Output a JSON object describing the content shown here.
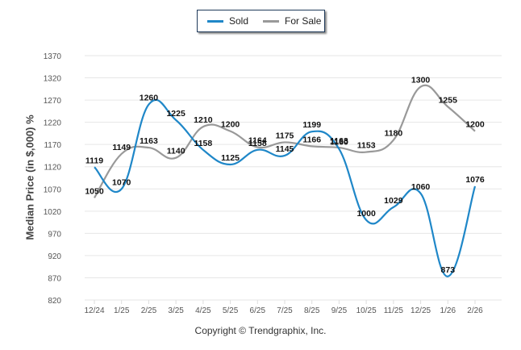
{
  "chart_data": {
    "type": "line",
    "title": "",
    "xlabel": "",
    "ylabel": "Median Price (in $,000) %",
    "categories": [
      "12/24",
      "1/25",
      "2/25",
      "3/25",
      "4/25",
      "5/25",
      "6/25",
      "7/25",
      "8/25",
      "9/25",
      "10/25",
      "11/25",
      "12/25",
      "1/26",
      "2/26"
    ],
    "yticks": [
      820,
      870,
      920,
      970,
      1020,
      1070,
      1120,
      1170,
      1220,
      1270,
      1320,
      1370
    ],
    "ylim": [
      820,
      1370
    ],
    "grid": true,
    "legend_position": "top-center",
    "series": [
      {
        "name": "Sold",
        "color": "#1f87c8",
        "values": [
          1119,
          1070,
          1260,
          1225,
          1158,
          1125,
          1158,
          1145,
          1199,
          1160,
          1000,
          1029,
          1060,
          873,
          1076
        ]
      },
      {
        "name": "For Sale",
        "color": "#999999",
        "values": [
          1050,
          1149,
          1163,
          1140,
          1210,
          1200,
          1164,
          1175,
          1166,
          1163,
          1153,
          1180,
          1300,
          1255,
          1200
        ]
      }
    ]
  },
  "legend": {
    "items": [
      {
        "label": "Sold"
      },
      {
        "label": "For Sale"
      }
    ]
  },
  "footer": {
    "copyright": "Copyright © Trendgraphix, Inc."
  }
}
